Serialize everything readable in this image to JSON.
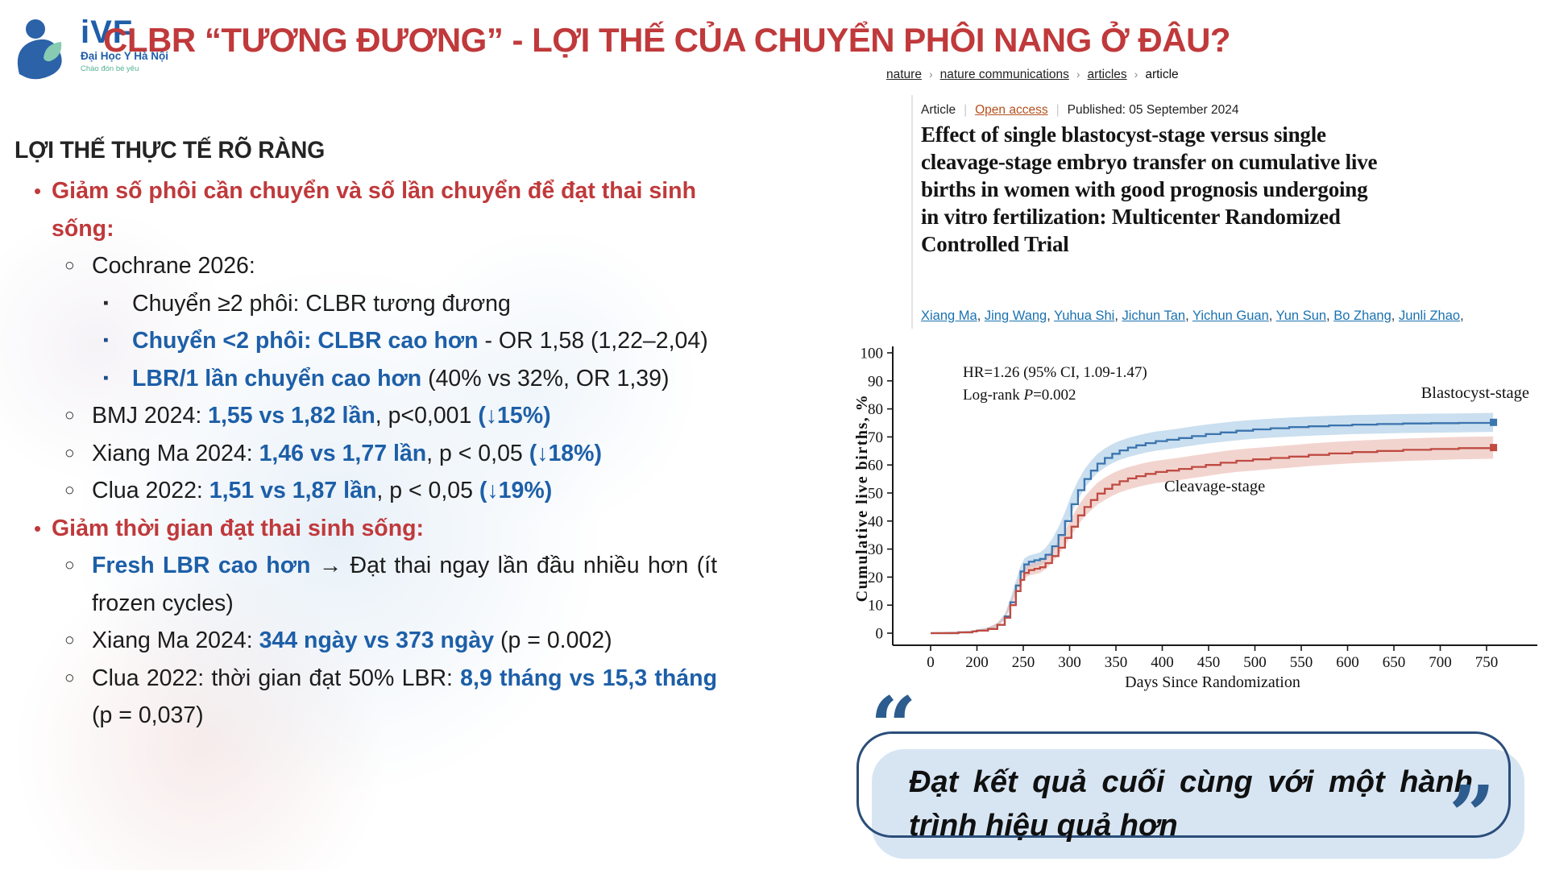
{
  "logo": {
    "brand": "iVF",
    "sub": "Đại Học Y Hà Nội",
    "tagline": "Chào đón bé yêu"
  },
  "title": "CLBR “TƯƠNG ĐƯƠNG” - LỢI THẾ CỦA CHUYỂN PHÔI NANG Ở ĐÂU?",
  "left": {
    "heading": "LỢI THẾ THỰC TẾ RÕ RÀNG",
    "items": [
      {
        "level": 1,
        "segments": [
          {
            "t": "Giảm số phôi cần chuyển và số lần chuyển để đạt thai sinh sống:",
            "s": "red"
          }
        ]
      },
      {
        "level": 2,
        "segments": [
          {
            "t": "Cochrane 2026:",
            "s": "n"
          }
        ]
      },
      {
        "level": 3,
        "segments": [
          {
            "t": "Chuyển ≥2 phôi: CLBR tương đương",
            "s": "n"
          }
        ]
      },
      {
        "level": 3,
        "segments": [
          {
            "t": "Chuyển <2 phôi: CLBR cao hơn",
            "s": "b"
          },
          {
            "t": " - OR 1,58 (1,22–2,04)",
            "s": "n"
          }
        ]
      },
      {
        "level": 3,
        "segments": [
          {
            "t": "LBR/1 lần chuyển cao hơn",
            "s": "b"
          },
          {
            "t": " (40% vs 32%, OR 1,39)",
            "s": "n"
          }
        ]
      },
      {
        "level": 2,
        "segments": [
          {
            "t": "BMJ 2024: ",
            "s": "n"
          },
          {
            "t": "1,55 vs 1,82 lần",
            "s": "b"
          },
          {
            "t": ", p<0,001 ",
            "s": "n"
          },
          {
            "t": "(↓15%)",
            "s": "b"
          }
        ]
      },
      {
        "level": 2,
        "segments": [
          {
            "t": "Xiang Ma 2024: ",
            "s": "n"
          },
          {
            "t": "1,46 vs 1,77 lần",
            "s": "b"
          },
          {
            "t": ", p < 0,05 ",
            "s": "n"
          },
          {
            "t": "(↓18%)",
            "s": "b"
          }
        ]
      },
      {
        "level": 2,
        "segments": [
          {
            "t": "Clua 2022: ",
            "s": "n"
          },
          {
            "t": "1,51 vs 1,87 lần",
            "s": "b"
          },
          {
            "t": ", p < 0,05 ",
            "s": "n"
          },
          {
            "t": "(↓19%)",
            "s": "b"
          }
        ]
      },
      {
        "level": 1,
        "segments": [
          {
            "t": "Giảm thời gian đạt thai sinh sống:",
            "s": "red"
          }
        ]
      },
      {
        "level": 2,
        "segments": [
          {
            "t": "Fresh LBR cao hơn",
            "s": "b"
          },
          {
            "t": " → Đạt thai ngay lần đầu nhiều hơn (ít frozen cycles)",
            "s": "n"
          }
        ]
      },
      {
        "level": 2,
        "segments": [
          {
            "t": "Xiang Ma 2024: ",
            "s": "n"
          },
          {
            "t": "344 ngày vs 373 ngày",
            "s": "b"
          },
          {
            "t": " (p = 0.002)",
            "s": "n"
          }
        ]
      },
      {
        "level": 2,
        "segments": [
          {
            "t": "Clua 2022: thời gian đạt 50% LBR: ",
            "s": "n"
          },
          {
            "t": "8,9 tháng vs 15,3 tháng",
            "s": "b"
          },
          {
            "t": " (p = 0,037)",
            "s": "n"
          }
        ]
      }
    ]
  },
  "article": {
    "breadcrumb": [
      {
        "label": "nature",
        "link": true
      },
      {
        "label": "nature communications",
        "link": true
      },
      {
        "label": "articles",
        "link": true
      },
      {
        "label": "article",
        "link": false
      }
    ],
    "meta": {
      "type": "Article",
      "access": "Open access",
      "published": "Published: 05 September 2024"
    },
    "title": "Effect of single blastocyst-stage versus single cleavage-stage embryo transfer on cumulative live births in women with good prognosis undergoing in vitro fertilization: Multicenter Randomized Controlled Trial",
    "authors": [
      "Xiang Ma",
      "Jing Wang",
      "Yuhua Shi",
      "Jichun Tan",
      "Yichun Guan",
      "Yun Sun",
      "Bo Zhang",
      "Junli Zhao"
    ]
  },
  "chart_data": {
    "type": "line",
    "subtype": "kaplan-meier-cumulative-incidence",
    "xlabel": "Days Since Randomization",
    "ylabel": "Cumulative live births, %",
    "x_ticks": [
      0,
      200,
      250,
      300,
      350,
      400,
      450,
      500,
      550,
      600,
      650,
      700,
      750
    ],
    "x_axis_note": "compressed axis: 0–200 occupies one tick interval, then 50-day intervals",
    "ylim": [
      0,
      100
    ],
    "y_ticks": [
      0,
      10,
      20,
      30,
      40,
      50,
      60,
      70,
      80,
      90,
      100
    ],
    "annotation": [
      "HR=1.26 (95% CI, 1.09-1.47)",
      "Log-rank P=0.002"
    ],
    "series": [
      {
        "name": "Blastocyst-stage",
        "color": "#3b74ae",
        "band_color": "#9fc4e2",
        "band_max_halfwidth": 3.4,
        "points": [
          [
            0,
            0
          ],
          [
            120,
            0.3
          ],
          [
            180,
            0.6
          ],
          [
            200,
            0.9
          ],
          [
            212,
            1.5
          ],
          [
            222,
            3
          ],
          [
            230,
            6
          ],
          [
            236,
            11
          ],
          [
            242,
            17
          ],
          [
            247,
            22
          ],
          [
            251,
            24.5
          ],
          [
            256,
            25.5
          ],
          [
            262,
            26
          ],
          [
            268,
            26.5
          ],
          [
            274,
            28
          ],
          [
            281,
            31
          ],
          [
            288,
            35
          ],
          [
            295,
            40
          ],
          [
            302,
            46
          ],
          [
            309,
            51
          ],
          [
            316,
            55
          ],
          [
            323,
            58
          ],
          [
            330,
            60.5
          ],
          [
            338,
            62.5
          ],
          [
            346,
            64
          ],
          [
            354,
            65.2
          ],
          [
            363,
            66.2
          ],
          [
            372,
            67
          ],
          [
            382,
            67.8
          ],
          [
            393,
            68.5
          ],
          [
            405,
            69
          ],
          [
            418,
            69.6
          ],
          [
            432,
            70.3
          ],
          [
            447,
            71
          ],
          [
            463,
            71.6
          ],
          [
            480,
            72.2
          ],
          [
            498,
            72.7
          ],
          [
            517,
            73.1
          ],
          [
            537,
            73.5
          ],
          [
            558,
            73.8
          ],
          [
            580,
            74.1
          ],
          [
            605,
            74.4
          ],
          [
            632,
            74.6
          ],
          [
            660,
            74.8
          ],
          [
            690,
            74.9
          ],
          [
            720,
            75
          ],
          [
            757,
            75.2
          ]
        ]
      },
      {
        "name": "Cleavage-stage",
        "color": "#bf4b42",
        "band_color": "#e7b0a8",
        "band_max_halfwidth": 4.0,
        "points": [
          [
            0,
            0
          ],
          [
            120,
            0.3
          ],
          [
            180,
            0.6
          ],
          [
            200,
            0.9
          ],
          [
            212,
            1.5
          ],
          [
            222,
            3
          ],
          [
            230,
            5.5
          ],
          [
            236,
            10
          ],
          [
            242,
            15
          ],
          [
            247,
            19
          ],
          [
            251,
            21.5
          ],
          [
            256,
            22.5
          ],
          [
            262,
            23
          ],
          [
            268,
            23.5
          ],
          [
            274,
            25
          ],
          [
            281,
            27.5
          ],
          [
            288,
            30.5
          ],
          [
            295,
            34
          ],
          [
            302,
            38
          ],
          [
            309,
            42
          ],
          [
            316,
            45
          ],
          [
            323,
            47.5
          ],
          [
            330,
            49.8
          ],
          [
            338,
            51.5
          ],
          [
            346,
            53
          ],
          [
            354,
            54.2
          ],
          [
            363,
            55.2
          ],
          [
            372,
            56
          ],
          [
            382,
            56.8
          ],
          [
            393,
            57.5
          ],
          [
            405,
            58
          ],
          [
            418,
            58.6
          ],
          [
            432,
            59.3
          ],
          [
            447,
            60
          ],
          [
            463,
            60.8
          ],
          [
            480,
            61.5
          ],
          [
            498,
            62
          ],
          [
            517,
            62.5
          ],
          [
            537,
            63
          ],
          [
            558,
            63.6
          ],
          [
            580,
            64.1
          ],
          [
            605,
            64.6
          ],
          [
            632,
            65
          ],
          [
            660,
            65.4
          ],
          [
            690,
            65.7
          ],
          [
            720,
            66
          ],
          [
            757,
            66.2
          ]
        ]
      }
    ]
  },
  "quote": {
    "open": "“",
    "close": "”",
    "text": "Đạt kết quả cuối cùng với một hành trình hiệu quả hơn"
  }
}
